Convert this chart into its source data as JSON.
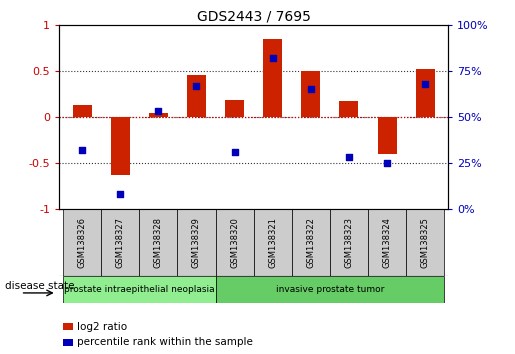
{
  "title": "GDS2443 / 7695",
  "samples": [
    "GSM138326",
    "GSM138327",
    "GSM138328",
    "GSM138329",
    "GSM138320",
    "GSM138321",
    "GSM138322",
    "GSM138323",
    "GSM138324",
    "GSM138325"
  ],
  "log2_ratio": [
    0.13,
    -0.63,
    0.04,
    0.45,
    0.18,
    0.85,
    0.5,
    0.17,
    -0.4,
    0.52
  ],
  "percentile_rank": [
    32,
    8,
    53,
    67,
    31,
    82,
    65,
    28,
    25,
    68
  ],
  "disease_groups": [
    {
      "label": "prostate intraepithelial neoplasia",
      "start": 0,
      "end": 4,
      "color": "#90EE90"
    },
    {
      "label": "invasive prostate tumor",
      "start": 4,
      "end": 10,
      "color": "#66CC66"
    }
  ],
  "bar_color": "#CC2200",
  "dot_color": "#0000BB",
  "ylim_left": [
    -1.0,
    1.0
  ],
  "ylim_right": [
    0,
    100
  ],
  "yticks_left": [
    -1,
    -0.5,
    0,
    0.5,
    1
  ],
  "yticks_right": [
    0,
    25,
    50,
    75,
    100
  ],
  "ytick_labels_left": [
    "-1",
    "-0.5",
    "0",
    "0.5",
    "1"
  ],
  "ytick_labels_right": [
    "0%",
    "25%",
    "50%",
    "75%",
    "100%"
  ],
  "legend_items": [
    {
      "label": "log2 ratio",
      "color": "#CC2200"
    },
    {
      "label": "percentile rank within the sample",
      "color": "#0000BB"
    }
  ],
  "disease_state_label": "disease state",
  "sample_box_color": "#CCCCCC",
  "hline_color": "#CC0000",
  "dotline_color": "#333333"
}
